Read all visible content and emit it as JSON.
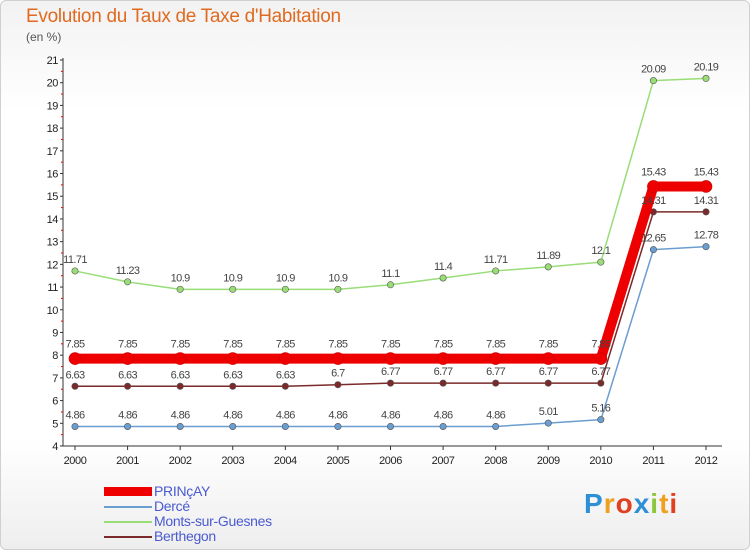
{
  "title": "Evolution du Taux de Taxe d'Habitation",
  "unit_label": "(en %)",
  "brand": {
    "letters": [
      "P",
      "r",
      "o",
      "x",
      "i",
      "t",
      "i"
    ],
    "colors": [
      "#2d8fd6",
      "#f0a020",
      "#e04020",
      "#2d8fd6",
      "#8cc63f",
      "#f0a020",
      "#e04020"
    ]
  },
  "chart_data": {
    "type": "line",
    "title": "Evolution du Taux de Taxe d'Habitation",
    "ylabel": "(en %)",
    "x": [
      "2000",
      "2001",
      "2002",
      "2003",
      "2004",
      "2005",
      "2006",
      "2007",
      "2008",
      "2009",
      "2010",
      "2011",
      "2012"
    ],
    "ylim": [
      4,
      21
    ],
    "yticks": [
      "4",
      "5",
      "6",
      "7",
      "8",
      "9",
      "10",
      "11",
      "12",
      "13",
      "14",
      "15",
      "16",
      "17",
      "18",
      "19",
      "20",
      "21"
    ],
    "grid": false,
    "legend": "bottom-left",
    "series": [
      {
        "name": "PRINçAY",
        "color": "#ee0000",
        "emphasis": true,
        "values": [
          7.85,
          7.85,
          7.85,
          7.85,
          7.85,
          7.85,
          7.85,
          7.85,
          7.85,
          7.85,
          7.85,
          15.43,
          15.43
        ],
        "labels": [
          "7.85",
          "7.85",
          "7.85",
          "7.85",
          "7.85",
          "7.85",
          "7.85",
          "7.85",
          "7.85",
          "7.85",
          "7.85",
          "15.43",
          "15.43"
        ]
      },
      {
        "name": "Dercé",
        "color": "#6a9ed0",
        "values": [
          4.86,
          4.86,
          4.86,
          4.86,
          4.86,
          4.86,
          4.86,
          4.86,
          4.86,
          5.01,
          5.16,
          12.65,
          12.78
        ],
        "labels": [
          "4.86",
          "4.86",
          "4.86",
          "4.86",
          "4.86",
          "4.86",
          "4.86",
          "4.86",
          "4.86",
          "5.01",
          "5.16",
          "12.65",
          "12.78"
        ]
      },
      {
        "name": "Monts-sur-Guesnes",
        "color": "#99dd77",
        "values": [
          11.71,
          11.23,
          10.9,
          10.9,
          10.9,
          10.9,
          11.1,
          11.4,
          11.71,
          11.89,
          12.1,
          20.09,
          20.19
        ],
        "labels": [
          "11.71",
          "11.23",
          "10.9",
          "10.9",
          "10.9",
          "10.9",
          "11.1",
          "11.4",
          "11.71",
          "11.89",
          "12.1",
          "20.09",
          "20.19"
        ]
      },
      {
        "name": "Berthegon",
        "color": "#7a2a2a",
        "values": [
          6.63,
          6.63,
          6.63,
          6.63,
          6.63,
          6.7,
          6.77,
          6.77,
          6.77,
          6.77,
          6.77,
          14.31,
          14.31
        ],
        "labels": [
          "6.63",
          "6.63",
          "6.63",
          "6.63",
          "6.63",
          "6.7",
          "6.77",
          "6.77",
          "6.77",
          "6.77",
          "6.77",
          "14.31",
          "14.31"
        ]
      }
    ]
  }
}
